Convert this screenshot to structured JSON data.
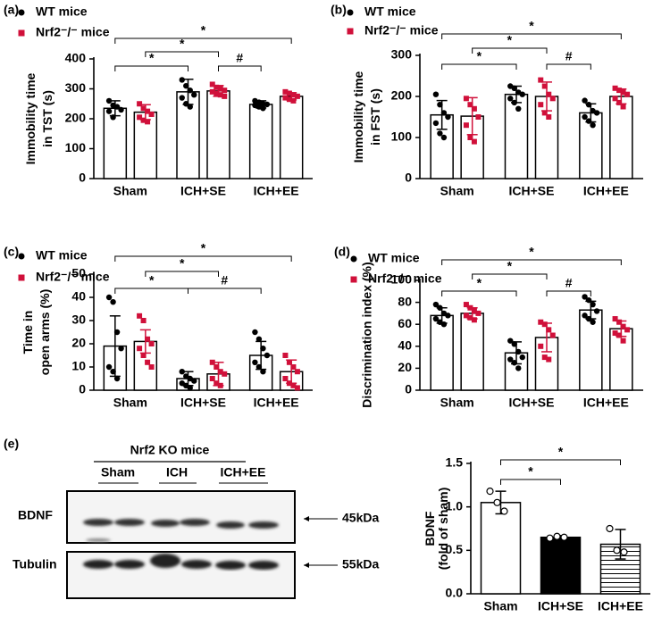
{
  "chart_data": [
    {
      "type": "bar",
      "panel_label": "(a)",
      "ylabel": [
        "Immobility time",
        "in TST (s)"
      ],
      "categories": [
        "Sham",
        "ICH+SE",
        "ICH+EE"
      ],
      "series": [
        {
          "name": "WT mice",
          "color": "#000000",
          "values": [
            235,
            290,
            248
          ],
          "errors": [
            25,
            42,
            12
          ],
          "points": [
            [
              260,
              245,
              240,
              230,
              225,
              205
            ],
            [
              330,
              310,
              295,
              280,
              270,
              250,
              240
            ],
            [
              260,
              255,
              250,
              248,
              245,
              240,
              235
            ]
          ]
        },
        {
          "name": "Nrf2⁻/⁻ mice",
          "color": "#d0103a",
          "values": [
            222,
            293,
            275
          ],
          "errors": [
            25,
            18,
            12
          ],
          "points": [
            [
              250,
              235,
              225,
              215,
              205,
              195,
              190
            ],
            [
              315,
              305,
              300,
              295,
              290,
              285,
              280,
              275
            ],
            [
              290,
              285,
              280,
              275,
              270,
              265,
              260
            ]
          ]
        }
      ],
      "ylim": [
        0,
        400
      ],
      "yticks": [
        0,
        100,
        200,
        300,
        400
      ],
      "annotations": [
        "*",
        "*",
        "*",
        "#"
      ]
    },
    {
      "type": "bar",
      "panel_label": "(b)",
      "ylabel": [
        "Immobility time",
        "in FST (s)"
      ],
      "categories": [
        "Sham",
        "ICH+SE",
        "ICH+EE"
      ],
      "series": [
        {
          "name": "WT mice",
          "color": "#000000",
          "values": [
            155,
            205,
            160
          ],
          "errors": [
            35,
            20,
            22
          ],
          "points": [
            [
              205,
              180,
              160,
              150,
              135,
              110,
              100
            ],
            [
              225,
              220,
              210,
              205,
              195,
              185,
              170
            ],
            [
              190,
              180,
              165,
              160,
              150,
              140,
              130
            ]
          ]
        },
        {
          "name": "Nrf2⁻/⁻ mice",
          "color": "#d0103a",
          "values": [
            152,
            200,
            200
          ],
          "errors": [
            45,
            35,
            18
          ],
          "points": [
            [
              195,
              180,
              170,
              150,
              130,
              100,
              90
            ],
            [
              240,
              225,
              205,
              195,
              180,
              160,
              150
            ],
            [
              220,
              215,
              210,
              205,
              195,
              185,
              175
            ]
          ]
        }
      ],
      "ylim": [
        0,
        300
      ],
      "yticks": [
        0,
        100,
        200,
        300
      ],
      "annotations": [
        "*",
        "*",
        "*",
        "#"
      ]
    },
    {
      "type": "bar",
      "panel_label": "(c)",
      "ylabel": [
        "Time in",
        "open arms (%)"
      ],
      "categories": [
        "Sham",
        "ICH+SE",
        "ICH+EE"
      ],
      "series": [
        {
          "name": "WT mice",
          "color": "#000000",
          "values": [
            19,
            5,
            15
          ],
          "errors": [
            13,
            3,
            6
          ],
          "points": [
            [
              40,
              38,
              25,
              18,
              10,
              8,
              5
            ],
            [
              8,
              6,
              5,
              4,
              3,
              2,
              1
            ],
            [
              25,
              22,
              18,
              15,
              12,
              10,
              8
            ]
          ]
        },
        {
          "name": "Nrf2⁻/⁻ mice",
          "color": "#d0103a",
          "values": [
            21,
            7,
            8
          ],
          "errors": [
            5,
            5,
            5
          ],
          "points": [
            [
              32,
              30,
              22,
              20,
              18,
              15,
              12,
              10
            ],
            [
              12,
              10,
              8,
              7,
              5,
              3,
              2
            ],
            [
              15,
              12,
              10,
              8,
              5,
              3,
              2,
              1
            ]
          ]
        }
      ],
      "ylim": [
        0,
        50
      ],
      "yticks": [
        0,
        10,
        20,
        30,
        40,
        50
      ],
      "annotations": [
        "*",
        "*",
        "*",
        "#"
      ]
    },
    {
      "type": "bar",
      "panel_label": "(d)",
      "ylabel": [
        "Discrimination index (%)"
      ],
      "categories": [
        "Sham",
        "ICH+SE",
        "ICH+EE"
      ],
      "series": [
        {
          "name": "WT mice",
          "color": "#000000",
          "values": [
            68,
            34,
            73
          ],
          "errors": [
            7,
            10,
            8
          ],
          "points": [
            [
              78,
              75,
              70,
              68,
              65,
              62,
              60
            ],
            [
              45,
              42,
              35,
              30,
              28,
              25,
              20
            ],
            [
              85,
              82,
              78,
              72,
              68,
              65,
              62
            ]
          ]
        },
        {
          "name": "Nrf2⁻/⁻ mice",
          "color": "#d0103a",
          "values": [
            70,
            48,
            56
          ],
          "errors": [
            5,
            13,
            7
          ],
          "points": [
            [
              78,
              75,
              72,
              70,
              68,
              66,
              64
            ],
            [
              62,
              60,
              55,
              50,
              40,
              30,
              28
            ],
            [
              65,
              62,
              58,
              55,
              52,
              50,
              45
            ]
          ]
        }
      ],
      "ylim": [
        0,
        100
      ],
      "yticks": [
        0,
        20,
        40,
        60,
        80,
        100
      ],
      "annotations": [
        "*",
        "*",
        "*",
        "#"
      ]
    },
    {
      "type": "bar",
      "panel_label": "(e)",
      "ylabel": [
        "BDNF",
        "(fold of sham)"
      ],
      "categories": [
        "Sham",
        "ICH+SE",
        "ICH+EE"
      ],
      "values": [
        1.05,
        0.65,
        0.57
      ],
      "errors": [
        0.13,
        0.02,
        0.17
      ],
      "points": [
        [
          1.18,
          1.05,
          0.95
        ],
        [
          0.64,
          0.66,
          0.65
        ],
        [
          0.75,
          0.5,
          0.48
        ]
      ],
      "colors": [
        "#ffffff",
        "#000000",
        "#ffffff"
      ],
      "hatch": [
        null,
        null,
        "horizontal"
      ],
      "ylim": [
        0,
        1.5
      ],
      "yticks": [
        {
          "value": 0,
          "label": "0.0"
        },
        {
          "value": 0.5,
          "label": "0.5"
        },
        {
          "value": 1,
          "label": "1.0"
        },
        {
          "value": 1.5,
          "label": "1.5"
        }
      ],
      "annotations": [
        "*",
        "*"
      ]
    }
  ],
  "blot": {
    "group": "Nrf2 KO mice",
    "lanes": [
      "Sham",
      "ICH",
      "ICH+EE"
    ],
    "rows": [
      "BDNF",
      "Tubulin"
    ],
    "sizes": [
      "45kDa",
      "55kDa"
    ]
  }
}
